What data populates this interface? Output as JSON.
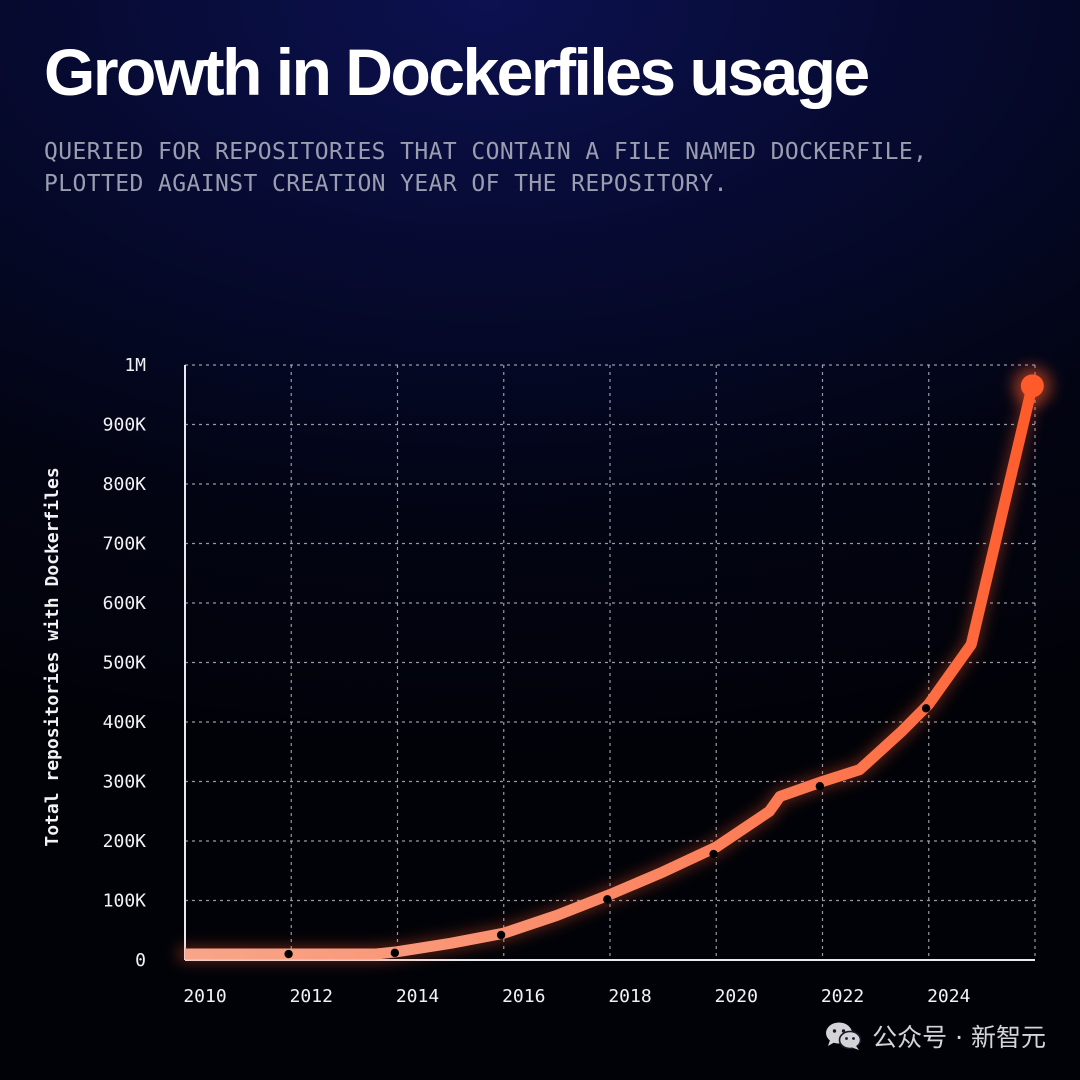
{
  "header": {
    "title": "Growth in Dockerfiles usage",
    "subtitle_line1": "QUERIED FOR REPOSITORIES THAT CONTAIN A FILE NAMED DOCKERFILE,",
    "subtitle_line2": "PLOTTED AGAINST CREATION YEAR OF THE REPOSITORY."
  },
  "watermark": {
    "icon": "wechat-icon",
    "text": "公众号 · 新智元"
  },
  "colors": {
    "line_start": "#f8a58a",
    "line_end": "#ff5a2a",
    "grid": "#c9cbd6",
    "marker": "#000000"
  },
  "chart_data": {
    "type": "line",
    "title": "Growth in Dockerfiles usage",
    "xlabel": "",
    "ylabel": "Total repositories with Dockerfiles",
    "xlim": [
      2010,
      2026
    ],
    "ylim": [
      0,
      1000000
    ],
    "x_ticks": [
      2010,
      2012,
      2014,
      2016,
      2018,
      2020,
      2022,
      2024
    ],
    "x_tick_labels": [
      "2010",
      "2012",
      "2014",
      "2016",
      "2018",
      "2020",
      "2022",
      "2024"
    ],
    "y_ticks": [
      0,
      100000,
      200000,
      300000,
      400000,
      500000,
      600000,
      700000,
      800000,
      900000,
      1000000
    ],
    "y_tick_labels": [
      "0",
      "100K",
      "200K",
      "300K",
      "400K",
      "500K",
      "600K",
      "700K",
      "800K",
      "900K",
      "1M"
    ],
    "grid": true,
    "legend": "none",
    "series": [
      {
        "x": [
          2010,
          2011,
          2012,
          2013,
          2013.6,
          2014,
          2015,
          2016,
          2017,
          2018,
          2019,
          2020,
          2021,
          2021.2,
          2022,
          2022.7,
          2023.5,
          2024,
          2024.8,
          2025.95
        ],
        "y": [
          10000,
          10000,
          10000,
          10000,
          10000,
          14000,
          28000,
          45000,
          75000,
          110000,
          148000,
          190000,
          250000,
          275000,
          300000,
          320000,
          385000,
          430000,
          530000,
          965000
        ]
      }
    ],
    "markers": {
      "x": [
        2011.95,
        2013.95,
        2015.95,
        2017.95,
        2019.95,
        2021.95,
        2023.95
      ],
      "y": [
        10000,
        12000,
        42000,
        102000,
        178000,
        292000,
        423000
      ]
    },
    "end_point": {
      "x": 2025.95,
      "y": 965000
    }
  }
}
